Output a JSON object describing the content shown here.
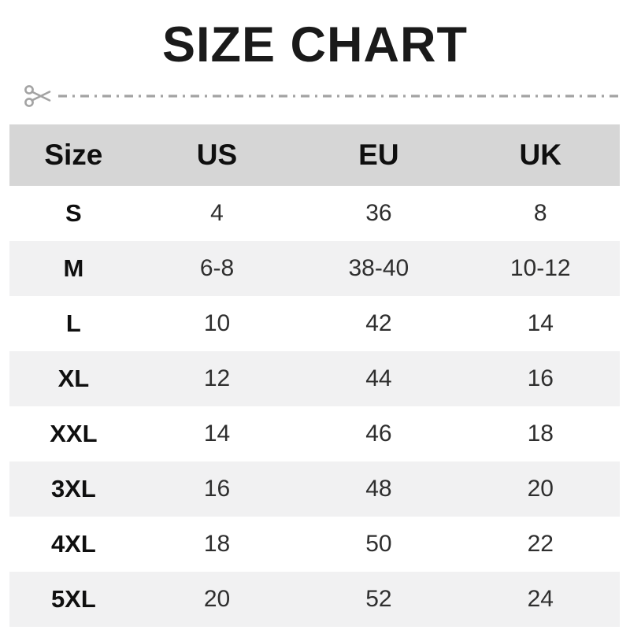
{
  "title": "SIZE CHART",
  "cut_line": {
    "icon": "scissors-icon"
  },
  "colors": {
    "header_bg": "#d6d6d6",
    "alt_row_bg": "#f1f1f2",
    "cut_line_gray": "#a3a3a3",
    "title_text": "#1a1a1a",
    "data_text": "#2e2e2e"
  },
  "table": {
    "headers": [
      "Size",
      "US",
      "EU",
      "UK"
    ],
    "rows": [
      {
        "size": "S",
        "us": "4",
        "eu": "36",
        "uk": "8"
      },
      {
        "size": "M",
        "us": "6-8",
        "eu": "38-40",
        "uk": "10-12"
      },
      {
        "size": "L",
        "us": "10",
        "eu": "42",
        "uk": "14"
      },
      {
        "size": "XL",
        "us": "12",
        "eu": "44",
        "uk": "16"
      },
      {
        "size": "XXL",
        "us": "14",
        "eu": "46",
        "uk": "18"
      },
      {
        "size": "3XL",
        "us": "16",
        "eu": "48",
        "uk": "20"
      },
      {
        "size": "4XL",
        "us": "18",
        "eu": "50",
        "uk": "22"
      },
      {
        "size": "5XL",
        "us": "20",
        "eu": "52",
        "uk": "24"
      }
    ]
  }
}
